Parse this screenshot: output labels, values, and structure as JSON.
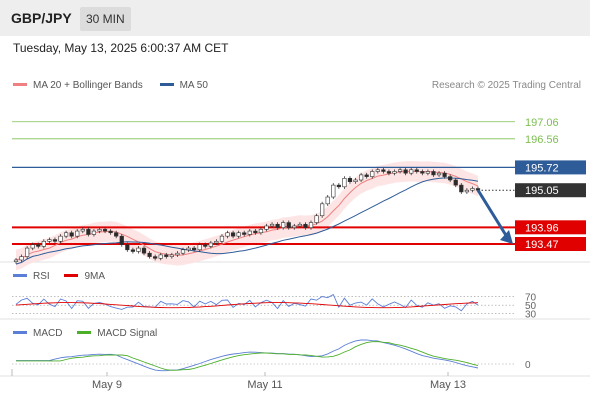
{
  "header": {
    "pair": "GBP/JPY",
    "timeframe": "30 MIN"
  },
  "timestamp": "Tuesday, May 13, 2025 6:00:37 AM CET",
  "credit": "Research © 2025 Trading Central",
  "legend": {
    "main": [
      {
        "label": "MA 20 + Bollinger Bands",
        "color": "#f08080"
      },
      {
        "label": "MA 50",
        "color": "#2e5c99"
      }
    ],
    "rsi": [
      {
        "label": "RSI",
        "color": "#5b7fd6"
      },
      {
        "label": "9MA",
        "color": "#e00000"
      }
    ],
    "macd": [
      {
        "label": "MACD",
        "color": "#5b7fd6"
      },
      {
        "label": "MACD Signal",
        "color": "#4caf2a"
      }
    ]
  },
  "chart_data": [
    {
      "type": "candlestick",
      "ylim": [
        193.0,
        197.7
      ],
      "x_ticks": [
        "May 9",
        "May 11",
        "May 13"
      ],
      "levels": [
        {
          "value": 197.06,
          "label": "197.06",
          "kind": "target",
          "color": "#7cbf50"
        },
        {
          "value": 196.56,
          "label": "196.56",
          "kind": "target",
          "color": "#7cbf50"
        },
        {
          "value": 195.72,
          "label": "195.72",
          "kind": "pivot",
          "color": "#2e5c99"
        },
        {
          "value": 195.05,
          "label": "195.05",
          "kind": "last",
          "color": "#333333"
        },
        {
          "value": 193.96,
          "label": "193.96",
          "kind": "support",
          "color": "#e00000"
        },
        {
          "value": 193.47,
          "label": "193.47",
          "kind": "support",
          "color": "#e00000"
        }
      ],
      "series": [
        {
          "name": "MA 20 + Bollinger Bands",
          "color": "#f08080"
        },
        {
          "name": "MA 50",
          "color": "#2e5c99"
        }
      ],
      "approx_close_path": [
        193.0,
        193.1,
        193.35,
        193.45,
        193.4,
        193.55,
        193.6,
        193.55,
        193.7,
        193.8,
        193.7,
        193.85,
        193.9,
        193.75,
        193.85,
        193.9,
        193.85,
        193.8,
        193.7,
        193.45,
        193.3,
        193.25,
        193.35,
        193.2,
        193.1,
        193.05,
        193.15,
        193.1,
        193.15,
        193.2,
        193.3,
        193.35,
        193.3,
        193.45,
        193.4,
        193.5,
        193.55,
        193.7,
        193.8,
        193.7,
        193.8,
        193.75,
        193.85,
        193.8,
        193.9,
        194.0,
        194.05,
        193.95,
        194.1,
        193.95,
        194.0,
        194.05,
        193.95,
        194.1,
        194.3,
        194.65,
        194.85,
        195.2,
        195.15,
        195.4,
        195.3,
        195.35,
        195.5,
        195.45,
        195.6,
        195.65,
        195.6,
        195.55,
        195.6,
        195.65,
        195.55,
        195.65,
        195.6,
        195.55,
        195.6,
        195.5,
        195.55,
        195.45,
        195.35,
        195.2,
        195.0,
        195.05,
        195.1,
        195.05
      ]
    },
    {
      "type": "line",
      "title": "RSI",
      "levels": [
        70,
        50,
        30
      ],
      "series": [
        {
          "name": "RSI",
          "color": "#5b7fd6"
        },
        {
          "name": "9MA",
          "color": "#e00000"
        }
      ]
    },
    {
      "type": "line",
      "title": "MACD",
      "levels": [
        0
      ],
      "series": [
        {
          "name": "MACD",
          "color": "#5b7fd6"
        },
        {
          "name": "MACD Signal",
          "color": "#4caf2a"
        }
      ]
    }
  ]
}
